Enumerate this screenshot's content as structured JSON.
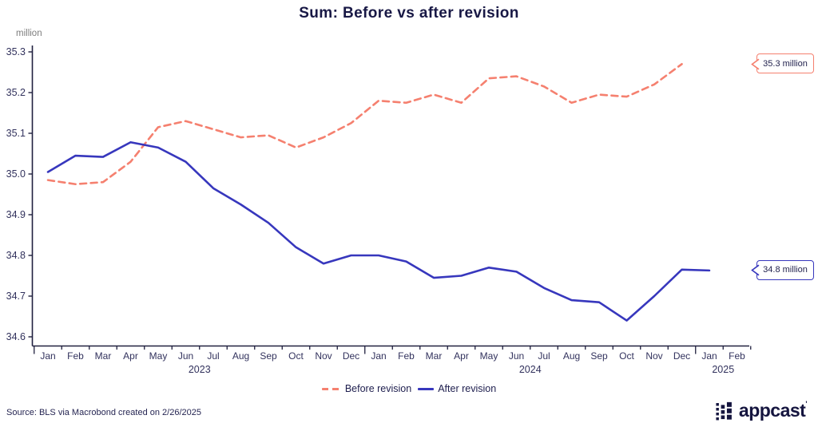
{
  "title": "Sum: Before vs after revision",
  "colors": {
    "coral": "#f5806f",
    "blue": "#3737bd",
    "axis": "#20203f",
    "tick_label": "#32325d",
    "unit_gray": "#7d7d7d"
  },
  "chart_data": {
    "type": "line",
    "title": "Sum: Before vs after revision",
    "unit_label": "million",
    "ylim": [
      34.6,
      35.3
    ],
    "ytick_step": 0.1,
    "grid": false,
    "legend_position": "bottom-center",
    "month_labels": [
      "Jan",
      "Feb",
      "Mar",
      "Apr",
      "May",
      "Jun",
      "Jul",
      "Aug",
      "Sep",
      "Oct",
      "Nov",
      "Dec",
      "Jan",
      "Feb",
      "Mar",
      "Apr",
      "May",
      "Jun",
      "Jul",
      "Aug",
      "Sep",
      "Oct",
      "Nov",
      "Dec",
      "Jan",
      "Feb"
    ],
    "year_labels": [
      {
        "label": "2023",
        "pos": 5.5
      },
      {
        "label": "2024",
        "pos": 17.5
      },
      {
        "label": "2025",
        "pos": 24.5
      }
    ],
    "x": [
      "Jan 2023",
      "Feb 2023",
      "Mar 2023",
      "Apr 2023",
      "May 2023",
      "Jun 2023",
      "Jul 2023",
      "Aug 2023",
      "Sep 2023",
      "Oct 2023",
      "Nov 2023",
      "Dec 2023",
      "Jan 2024",
      "Feb 2024",
      "Mar 2024",
      "Apr 2024",
      "May 2024",
      "Jun 2024",
      "Jul 2024",
      "Aug 2024",
      "Sep 2024",
      "Oct 2024",
      "Nov 2024",
      "Dec 2024",
      "Jan 2025",
      "Feb 2025"
    ],
    "series": [
      {
        "name": "Before revision",
        "color": "#f5806f",
        "style": "dashed",
        "values": [
          34.985,
          34.975,
          34.98,
          35.03,
          35.115,
          35.13,
          35.11,
          35.09,
          35.095,
          35.065,
          35.09,
          35.125,
          35.18,
          35.175,
          35.195,
          35.175,
          35.235,
          35.24,
          35.215,
          35.175,
          35.195,
          35.19,
          35.22,
          35.27,
          null,
          null
        ]
      },
      {
        "name": "After revision",
        "color": "#3737bd",
        "style": "solid",
        "values": [
          35.005,
          35.045,
          35.042,
          35.078,
          35.065,
          35.03,
          34.965,
          34.925,
          34.88,
          34.82,
          34.78,
          34.8,
          34.8,
          34.785,
          34.745,
          34.75,
          34.77,
          34.76,
          34.72,
          34.69,
          34.685,
          34.64,
          34.7,
          34.765,
          34.763,
          null
        ]
      }
    ]
  },
  "legend": {
    "items": [
      {
        "label": "Before revision",
        "color": "#f5806f",
        "dashed": true
      },
      {
        "label": "After revision",
        "color": "#3737bd",
        "dashed": false
      }
    ]
  },
  "callouts": [
    {
      "text": "35.3 million",
      "color": "#f5806f",
      "y_value": 35.27
    },
    {
      "text": "34.8 million",
      "color": "#3737bd",
      "y_value": 34.763
    }
  ],
  "source": "Source: BLS via Macrobond created on 2/26/2025",
  "brand": {
    "word": "appcast",
    "tick": "'"
  }
}
